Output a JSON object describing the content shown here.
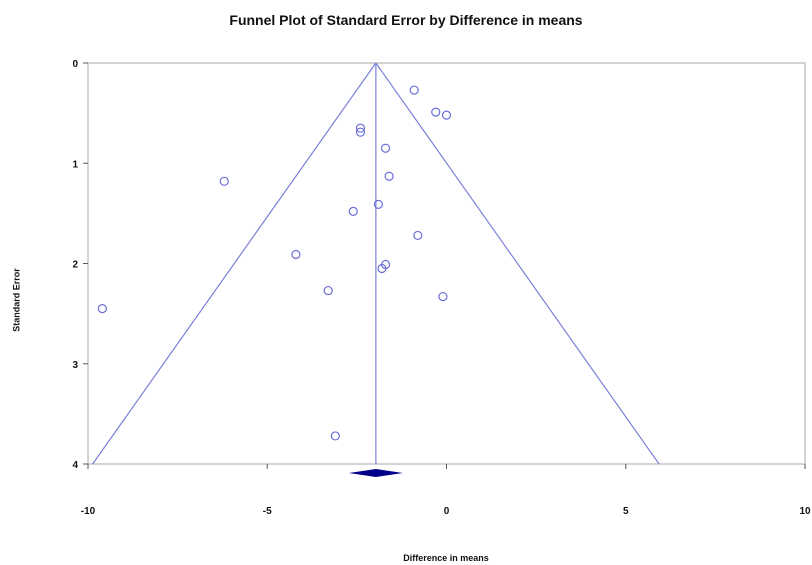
{
  "chart_data": {
    "type": "scatter",
    "title": "Funnel Plot of Standard Error by Difference in means",
    "xlabel": "Difference in means",
    "ylabel": "Standard Error",
    "xlim": [
      -10,
      10
    ],
    "ylim": [
      0,
      4
    ],
    "y_inverted": true,
    "xticks": [
      "-10",
      "-5",
      "0",
      "5",
      "10"
    ],
    "yticks": [
      "0",
      "1",
      "2",
      "3",
      "4"
    ],
    "summary_effect": -1.97,
    "funnel": {
      "apex": [
        -1.97,
        0
      ],
      "bottom_left": [
        -9.87,
        4
      ],
      "bottom_right": [
        5.93,
        4
      ]
    },
    "points": [
      {
        "x": -0.9,
        "y": 0.27
      },
      {
        "x": -0.3,
        "y": 0.49
      },
      {
        "x": 0.0,
        "y": 0.52
      },
      {
        "x": -2.4,
        "y": 0.65
      },
      {
        "x": -2.4,
        "y": 0.69
      },
      {
        "x": -1.7,
        "y": 0.85
      },
      {
        "x": -6.2,
        "y": 1.18
      },
      {
        "x": -1.6,
        "y": 1.13
      },
      {
        "x": -2.6,
        "y": 1.48
      },
      {
        "x": -1.9,
        "y": 1.41
      },
      {
        "x": -0.8,
        "y": 1.72
      },
      {
        "x": -4.2,
        "y": 1.91
      },
      {
        "x": -1.7,
        "y": 2.01
      },
      {
        "x": -1.8,
        "y": 2.05
      },
      {
        "x": -3.3,
        "y": 2.27
      },
      {
        "x": -0.1,
        "y": 2.33
      },
      {
        "x": -9.6,
        "y": 2.45
      },
      {
        "x": -3.1,
        "y": 3.72
      }
    ],
    "colors": {
      "marker": "#6a6fd8",
      "lines": "#7a80d8",
      "diamond": "#00008b",
      "axis": "#aaaaaa"
    },
    "grid": false,
    "legend": "none"
  }
}
